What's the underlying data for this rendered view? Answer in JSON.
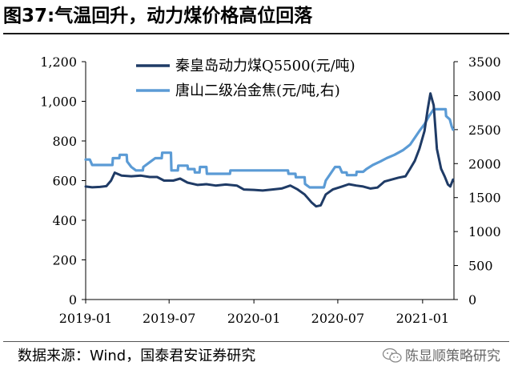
{
  "figure": {
    "title": "图37:气温回升，动力煤价格高位回落",
    "source": "数据来源：Wind，国泰君安证券研究",
    "watermark": "陈显顺策略研究",
    "watermark_icon": "wechat-icon"
  },
  "chart_data": {
    "type": "line",
    "x_tick_labels": [
      "2019-01",
      "2019-07",
      "2020-01",
      "2020-07",
      "2021-01"
    ],
    "x_tick_dates": [
      "2019-01-01",
      "2019-07-01",
      "2020-01-01",
      "2020-07-01",
      "2021-01-01"
    ],
    "xlim": [
      "2019-01-01",
      "2021-03-10"
    ],
    "ylim_left": [
      0,
      1200
    ],
    "yticks_left": [
      "0",
      "200",
      "400",
      "600",
      "800",
      "1,000",
      "1,200"
    ],
    "ylim_right": [
      0,
      3500
    ],
    "yticks_right": [
      "0",
      "500",
      "1000",
      "1500",
      "2000",
      "2500",
      "3000",
      "3500"
    ],
    "grid": false,
    "legend_position": "top-center",
    "series": [
      {
        "name": "秦皇岛动力煤Q5500(元/吨)",
        "axis": "left",
        "color": "#1f3b66",
        "points": [
          [
            "2019-01-01",
            570
          ],
          [
            "2019-01-15",
            566
          ],
          [
            "2019-02-01",
            568
          ],
          [
            "2019-02-15",
            572
          ],
          [
            "2019-02-25",
            600
          ],
          [
            "2019-03-05",
            640
          ],
          [
            "2019-03-20",
            625
          ],
          [
            "2019-04-10",
            622
          ],
          [
            "2019-05-01",
            625
          ],
          [
            "2019-05-20",
            618
          ],
          [
            "2019-06-05",
            618
          ],
          [
            "2019-06-20",
            600
          ],
          [
            "2019-07-10",
            600
          ],
          [
            "2019-07-25",
            610
          ],
          [
            "2019-08-10",
            590
          ],
          [
            "2019-09-01",
            578
          ],
          [
            "2019-09-20",
            582
          ],
          [
            "2019-10-10",
            575
          ],
          [
            "2019-11-01",
            580
          ],
          [
            "2019-11-25",
            575
          ],
          [
            "2019-12-10",
            555
          ],
          [
            "2020-01-01",
            553
          ],
          [
            "2020-01-20",
            550
          ],
          [
            "2020-02-10",
            555
          ],
          [
            "2020-03-01",
            560
          ],
          [
            "2020-03-20",
            575
          ],
          [
            "2020-04-05",
            555
          ],
          [
            "2020-04-20",
            530
          ],
          [
            "2020-05-05",
            490
          ],
          [
            "2020-05-15",
            470
          ],
          [
            "2020-05-25",
            475
          ],
          [
            "2020-06-05",
            530
          ],
          [
            "2020-06-20",
            555
          ],
          [
            "2020-07-10",
            570
          ],
          [
            "2020-07-25",
            582
          ],
          [
            "2020-08-10",
            575
          ],
          [
            "2020-08-25",
            570
          ],
          [
            "2020-09-10",
            560
          ],
          [
            "2020-09-25",
            565
          ],
          [
            "2020-10-10",
            595
          ],
          [
            "2020-10-25",
            605
          ],
          [
            "2020-11-10",
            615
          ],
          [
            "2020-11-25",
            622
          ],
          [
            "2020-12-05",
            660
          ],
          [
            "2020-12-15",
            700
          ],
          [
            "2020-12-25",
            760
          ],
          [
            "2021-01-05",
            850
          ],
          [
            "2021-01-12",
            960
          ],
          [
            "2021-01-18",
            1040
          ],
          [
            "2021-01-25",
            980
          ],
          [
            "2021-02-01",
            760
          ],
          [
            "2021-02-10",
            660
          ],
          [
            "2021-02-18",
            620
          ],
          [
            "2021-02-25",
            580
          ],
          [
            "2021-03-02",
            570
          ],
          [
            "2021-03-08",
            605
          ]
        ]
      },
      {
        "name": "唐山二级冶金焦(元/吨,右)",
        "axis": "right",
        "color": "#5b9bd5",
        "points": [
          [
            "2019-01-01",
            2060
          ],
          [
            "2019-01-10",
            2060
          ],
          [
            "2019-01-15",
            1980
          ],
          [
            "2019-02-28",
            1980
          ],
          [
            "2019-03-01",
            2080
          ],
          [
            "2019-03-15",
            2080
          ],
          [
            "2019-03-16",
            2130
          ],
          [
            "2019-03-31",
            2130
          ],
          [
            "2019-04-01",
            2030
          ],
          [
            "2019-04-10",
            1950
          ],
          [
            "2019-04-20",
            1900
          ],
          [
            "2019-05-05",
            1900
          ],
          [
            "2019-05-06",
            1950
          ],
          [
            "2019-05-20",
            2020
          ],
          [
            "2019-06-01",
            2080
          ],
          [
            "2019-06-15",
            2080
          ],
          [
            "2019-06-16",
            2160
          ],
          [
            "2019-07-05",
            2160
          ],
          [
            "2019-07-06",
            1900
          ],
          [
            "2019-07-20",
            1900
          ],
          [
            "2019-07-21",
            1970
          ],
          [
            "2019-08-10",
            1970
          ],
          [
            "2019-08-11",
            1920
          ],
          [
            "2019-08-25",
            1920
          ],
          [
            "2019-08-26",
            1870
          ],
          [
            "2019-09-05",
            1870
          ],
          [
            "2019-09-06",
            1950
          ],
          [
            "2019-09-20",
            1950
          ],
          [
            "2019-09-21",
            1850
          ],
          [
            "2019-11-10",
            1850
          ],
          [
            "2019-11-11",
            1900
          ],
          [
            "2019-12-31",
            1900
          ],
          [
            "2020-01-01",
            1900
          ],
          [
            "2020-03-15",
            1900
          ],
          [
            "2020-03-16",
            1850
          ],
          [
            "2020-03-31",
            1850
          ],
          [
            "2020-04-01",
            1800
          ],
          [
            "2020-04-20",
            1800
          ],
          [
            "2020-04-21",
            1700
          ],
          [
            "2020-05-01",
            1650
          ],
          [
            "2020-06-01",
            1650
          ],
          [
            "2020-06-05",
            1750
          ],
          [
            "2020-06-15",
            1850
          ],
          [
            "2020-06-25",
            1950
          ],
          [
            "2020-07-05",
            1950
          ],
          [
            "2020-07-10",
            1870
          ],
          [
            "2020-07-20",
            1870
          ],
          [
            "2020-07-21",
            1830
          ],
          [
            "2020-08-10",
            1830
          ],
          [
            "2020-08-11",
            1880
          ],
          [
            "2020-08-25",
            1880
          ],
          [
            "2020-09-01",
            1920
          ],
          [
            "2020-09-15",
            1980
          ],
          [
            "2020-10-01",
            2030
          ],
          [
            "2020-10-15",
            2080
          ],
          [
            "2020-11-01",
            2130
          ],
          [
            "2020-11-20",
            2200
          ],
          [
            "2020-12-05",
            2280
          ],
          [
            "2020-12-15",
            2380
          ],
          [
            "2020-12-25",
            2480
          ],
          [
            "2021-01-05",
            2580
          ],
          [
            "2021-01-15",
            2700
          ],
          [
            "2021-01-25",
            2800
          ],
          [
            "2021-02-20",
            2800
          ],
          [
            "2021-02-21",
            2700
          ],
          [
            "2021-03-01",
            2650
          ],
          [
            "2021-03-05",
            2550
          ],
          [
            "2021-03-08",
            2500
          ]
        ]
      }
    ]
  }
}
